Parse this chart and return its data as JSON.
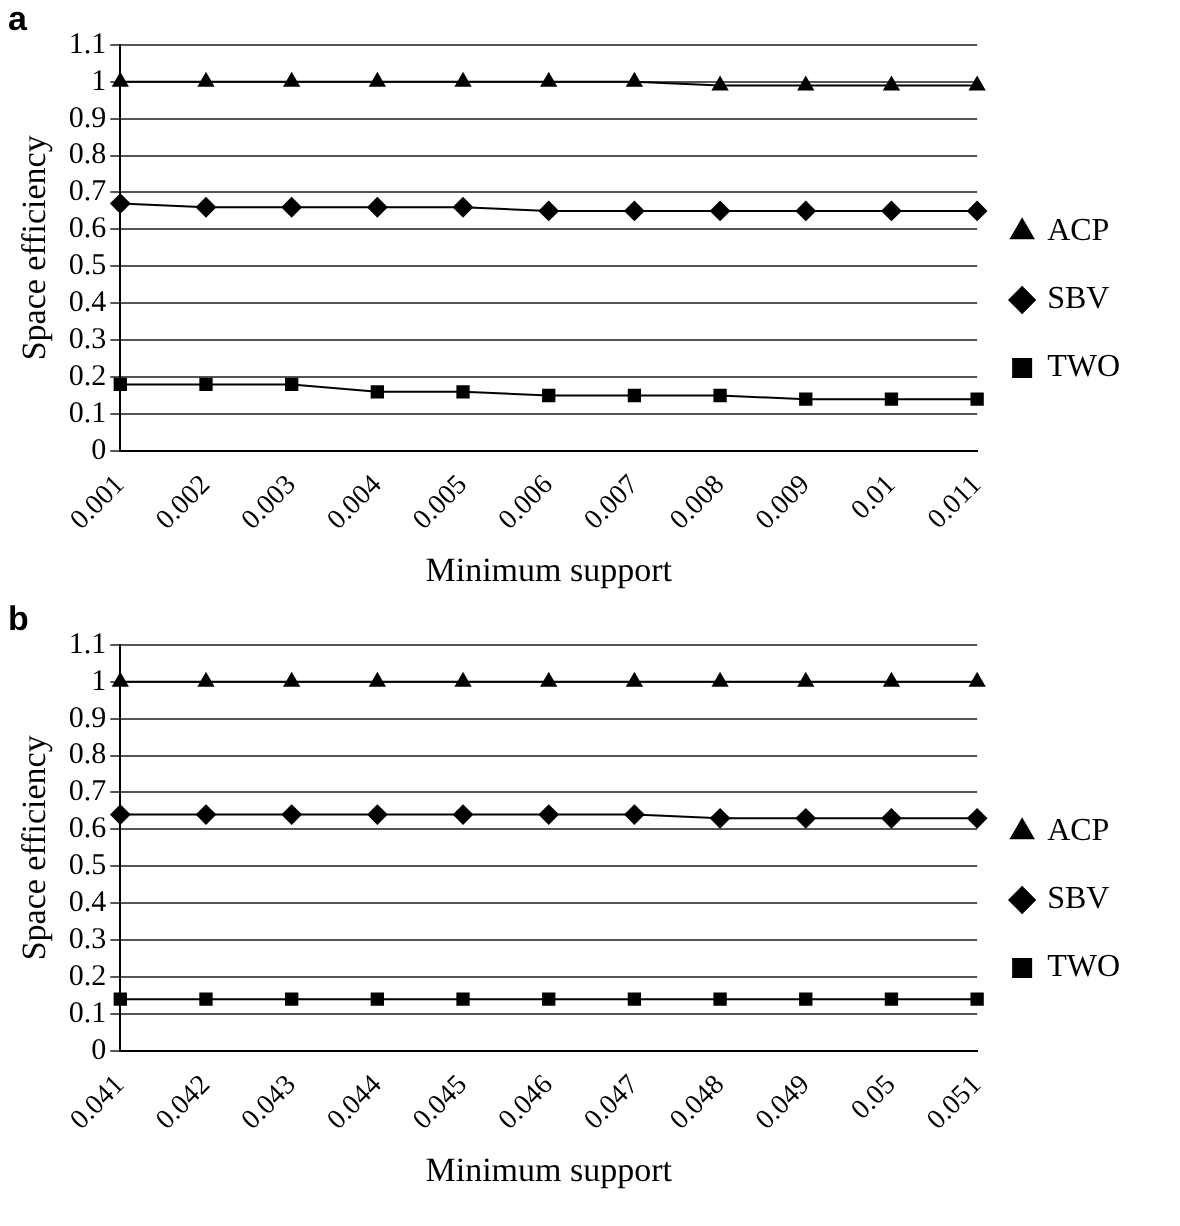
{
  "chart_data": [
    {
      "type": "line",
      "title": "a",
      "xlabel": "Minimum support",
      "ylabel": "Space efficiency",
      "categories": [
        "0.001",
        "0.002",
        "0.003",
        "0.004",
        "0.005",
        "0.006",
        "0.007",
        "0.008",
        "0.009",
        "0.01",
        "0.011"
      ],
      "series": [
        {
          "name": "ACP",
          "color": "#000000",
          "marker": "triangle",
          "values": [
            1,
            1,
            1,
            1,
            1,
            1,
            1,
            0.99,
            0.99,
            0.99,
            0.99
          ]
        },
        {
          "name": "SBV",
          "color": "#000000",
          "marker": "diamond",
          "values": [
            0.67,
            0.66,
            0.66,
            0.66,
            0.66,
            0.65,
            0.65,
            0.65,
            0.65,
            0.65,
            0.65
          ]
        },
        {
          "name": "TWO",
          "color": "#000000",
          "marker": "square",
          "values": [
            0.18,
            0.18,
            0.18,
            0.16,
            0.16,
            0.15,
            0.15,
            0.15,
            0.14,
            0.14,
            0.14
          ]
        }
      ],
      "ylim": [
        0,
        1.1
      ],
      "yticks": [
        0,
        0.1,
        0.2,
        0.3,
        0.4,
        0.5,
        0.6,
        0.7,
        0.8,
        0.9,
        1,
        1.1
      ],
      "grid": "y",
      "legend": "right",
      "line_style": "solid"
    },
    {
      "type": "line",
      "title": "b",
      "xlabel": "Minimum support",
      "ylabel": "Space efficiency",
      "categories": [
        "0.041",
        "0.042",
        "0.043",
        "0.044",
        "0.045",
        "0.046",
        "0.047",
        "0.048",
        "0.049",
        "0.05",
        "0.051"
      ],
      "series": [
        {
          "name": "ACP",
          "color": "#000000",
          "marker": "triangle",
          "values": [
            1,
            1,
            1,
            1,
            1,
            1,
            1,
            1,
            1,
            1,
            1
          ]
        },
        {
          "name": "SBV",
          "color": "#000000",
          "marker": "diamond",
          "values": [
            0.64,
            0.64,
            0.64,
            0.64,
            0.64,
            0.64,
            0.64,
            0.63,
            0.63,
            0.63,
            0.63
          ]
        },
        {
          "name": "TWO",
          "color": "#000000",
          "marker": "square",
          "values": [
            0.14,
            0.14,
            0.14,
            0.14,
            0.14,
            0.14,
            0.14,
            0.14,
            0.14,
            0.14,
            0.14
          ]
        }
      ],
      "ylim": [
        0,
        1.1
      ],
      "yticks": [
        0,
        0.1,
        0.2,
        0.3,
        0.4,
        0.5,
        0.6,
        0.7,
        0.8,
        0.9,
        1,
        1.1
      ],
      "grid": "y",
      "legend": "right",
      "line_style": "solid"
    }
  ]
}
